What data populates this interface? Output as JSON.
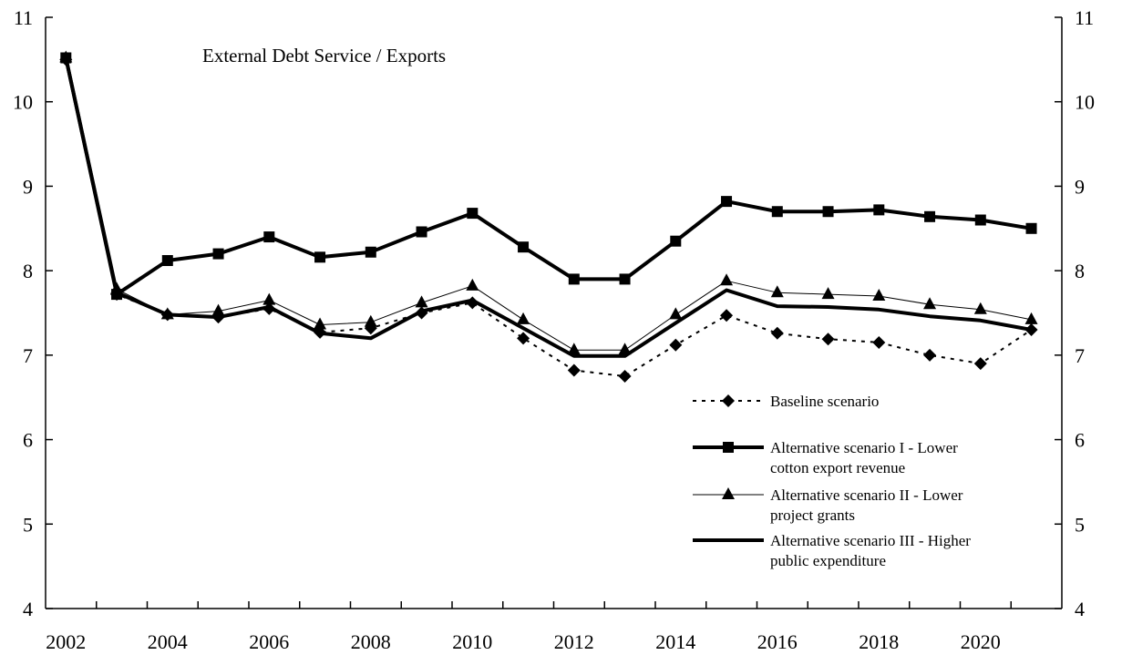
{
  "chart_data": {
    "type": "line",
    "title": "External Debt Service / Exports",
    "xlabel": "",
    "ylabel": "",
    "ylim": [
      4,
      11
    ],
    "y_ticks": [
      4,
      5,
      6,
      7,
      8,
      9,
      10,
      11
    ],
    "x_tick_labels": [
      2002,
      2004,
      2006,
      2008,
      2010,
      2012,
      2014,
      2016,
      2018,
      2020
    ],
    "x": [
      2002,
      2003,
      2004,
      2005,
      2006,
      2007,
      2008,
      2009,
      2010,
      2011,
      2012,
      2013,
      2014,
      2015,
      2016,
      2017,
      2018,
      2019,
      2020,
      2021
    ],
    "legend_position": "bottom-right",
    "grid": false,
    "series": [
      {
        "name": "Baseline scenario",
        "style": "dotted",
        "marker": "diamond",
        "color": "#000000",
        "values": [
          10.5,
          7.72,
          7.48,
          7.45,
          7.55,
          7.27,
          7.32,
          7.5,
          7.62,
          7.2,
          6.82,
          6.75,
          7.12,
          7.47,
          7.26,
          7.19,
          7.15,
          7.0,
          6.9,
          7.3
        ]
      },
      {
        "name": "Alternative scenario I - Lower cotton export revenue",
        "name_lines": [
          "Alternative scenario I - Lower",
          "cotton export revenue"
        ],
        "style": "thick",
        "marker": "square",
        "color": "#000000",
        "values": [
          10.52,
          7.72,
          8.12,
          8.2,
          8.4,
          8.16,
          8.22,
          8.46,
          8.68,
          8.28,
          7.9,
          7.9,
          8.35,
          8.82,
          8.7,
          8.7,
          8.72,
          8.64,
          8.6,
          8.5
        ]
      },
      {
        "name": "Alternative scenario II - Lower project grants",
        "name_lines": [
          "Alternative scenario II - Lower",
          "project grants"
        ],
        "style": "thin",
        "marker": "triangle",
        "color": "#000000",
        "values": [
          10.52,
          7.78,
          7.48,
          7.52,
          7.65,
          7.36,
          7.39,
          7.62,
          7.82,
          7.42,
          7.06,
          7.06,
          7.48,
          7.88,
          7.74,
          7.72,
          7.7,
          7.6,
          7.54,
          7.42
        ]
      },
      {
        "name": "Alternative scenario III - Higher public expenditure",
        "name_lines": [
          "Alternative scenario III - Higher",
          "public expenditure"
        ],
        "style": "thick",
        "marker": "none",
        "color": "#000000",
        "values": [
          10.52,
          7.74,
          7.48,
          7.45,
          7.57,
          7.26,
          7.2,
          7.52,
          7.65,
          7.32,
          6.99,
          6.99,
          7.38,
          7.77,
          7.58,
          7.57,
          7.54,
          7.46,
          7.41,
          7.3
        ]
      }
    ]
  }
}
